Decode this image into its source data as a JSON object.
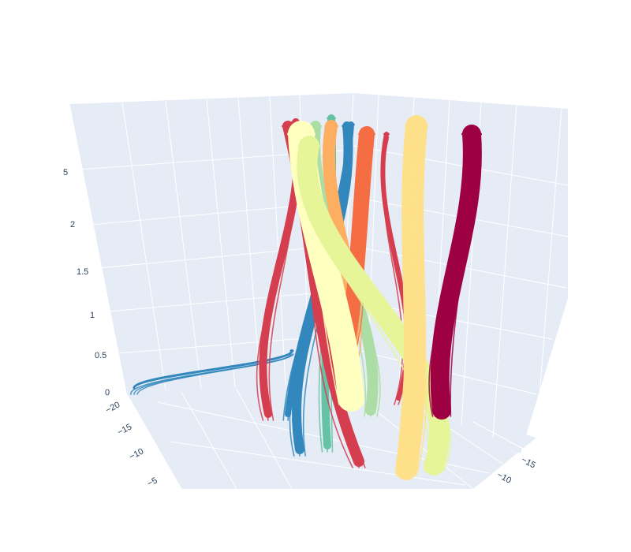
{
  "chart_data": {
    "type": "streamtube",
    "title": "",
    "colorscale": [
      "#9e0142",
      "#d53e4f",
      "#f46d43",
      "#fdae61",
      "#fee08b",
      "#ffffbf",
      "#e6f598",
      "#abdda4",
      "#66c2a5",
      "#3288bd"
    ],
    "background": "#e5ecf6",
    "grid": true,
    "axes": {
      "z": {
        "label": "",
        "ticks": [
          "0",
          "0.5",
          "1",
          "1.5",
          "2",
          "5"
        ]
      },
      "y": {
        "label": "",
        "ticks": [
          "−20",
          "−15",
          "−10",
          "−5"
        ]
      },
      "x": {
        "label": "",
        "ticks": [
          "−15",
          "−10"
        ]
      }
    },
    "tubes": [
      {
        "color": "#3288bd",
        "width": 3,
        "base": [
          170,
          492
        ],
        "top": [
          370,
          445
        ],
        "sway": 0
      },
      {
        "color": "#3288bd",
        "width": 12,
        "base": [
          380,
          570
        ],
        "top": [
          440,
          160
        ],
        "sway": -25
      },
      {
        "color": "#3288bd",
        "width": 8,
        "base": [
          365,
          525
        ],
        "top": [
          445,
          158
        ],
        "sway": 15
      },
      {
        "color": "#66c2a5",
        "width": 10,
        "base": [
          415,
          565
        ],
        "top": [
          420,
          150
        ],
        "sway": -10
      },
      {
        "color": "#abdda4",
        "width": 14,
        "base": [
          470,
          520
        ],
        "top": [
          400,
          160
        ],
        "sway": 20
      },
      {
        "color": "#d53e4f",
        "width": 10,
        "base": [
          340,
          525
        ],
        "top": [
          375,
          155
        ],
        "sway": -30
      },
      {
        "color": "#d53e4f",
        "width": 14,
        "base": [
          455,
          585
        ],
        "top": [
          365,
          160
        ],
        "sway": -60
      },
      {
        "color": "#d53e4f",
        "width": 6,
        "base": [
          505,
          505
        ],
        "top": [
          490,
          170
        ],
        "sway": 40
      },
      {
        "color": "#fdae61",
        "width": 16,
        "base": [
          440,
          465
        ],
        "top": [
          420,
          160
        ],
        "sway": 30
      },
      {
        "color": "#f46d43",
        "width": 20,
        "base": [
          440,
          440
        ],
        "top": [
          465,
          170
        ],
        "sway": 15
      },
      {
        "color": "#ffffbf",
        "width": 34,
        "base": [
          445,
          505
        ],
        "top": [
          382,
          170
        ],
        "sway": -10
      },
      {
        "color": "#e6f598",
        "width": 26,
        "base": [
          550,
          590
        ],
        "top": [
          392,
          185
        ],
        "sway": 50
      },
      {
        "color": "#fee08b",
        "width": 28,
        "base": [
          515,
          595
        ],
        "top": [
          528,
          160
        ],
        "sway": 25
      },
      {
        "color": "#9e0142",
        "width": 24,
        "base": [
          560,
          520
        ],
        "top": [
          598,
          170
        ],
        "sway": -15
      }
    ]
  }
}
